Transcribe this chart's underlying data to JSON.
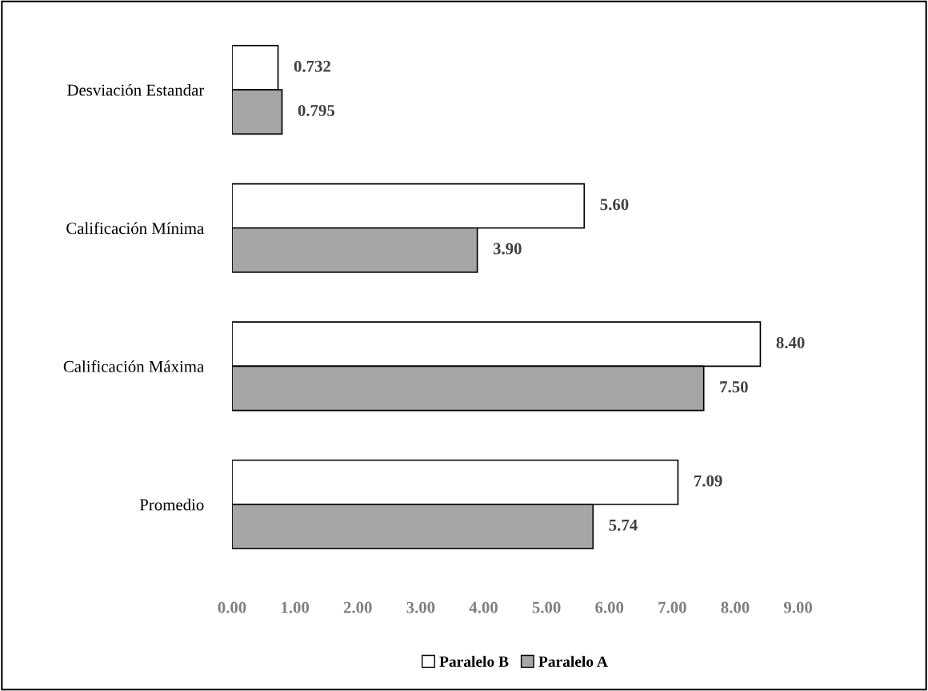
{
  "chart_data": {
    "type": "bar",
    "orientation": "horizontal",
    "categories": [
      "Desviación Estandar",
      "Calificación Mínima",
      "Calificación Máxima",
      "Promedio"
    ],
    "series": [
      {
        "name": "Paralelo B",
        "color": "#ffffff",
        "values": [
          0.732,
          5.6,
          8.4,
          7.09
        ],
        "value_labels": [
          "0.732",
          "5.60",
          "8.40",
          "7.09"
        ]
      },
      {
        "name": "Paralelo A",
        "color": "#a6a6a6",
        "values": [
          0.795,
          3.9,
          7.5,
          5.74
        ],
        "value_labels": [
          "0.795",
          "3.90",
          "7.50",
          "5.74"
        ]
      }
    ],
    "xlim": [
      0,
      9
    ],
    "xticks": [
      {
        "value": 0,
        "label": "0.00"
      },
      {
        "value": 1,
        "label": "1.00"
      },
      {
        "value": 2,
        "label": "2.00"
      },
      {
        "value": 3,
        "label": "3.00"
      },
      {
        "value": 4,
        "label": "4.00"
      },
      {
        "value": 5,
        "label": "5.00"
      },
      {
        "value": 6,
        "label": "6.00"
      },
      {
        "value": 7,
        "label": "7.00"
      },
      {
        "value": 8,
        "label": "8.00"
      },
      {
        "value": 9,
        "label": "9.00"
      }
    ],
    "grid": false,
    "legend": "bottom"
  }
}
